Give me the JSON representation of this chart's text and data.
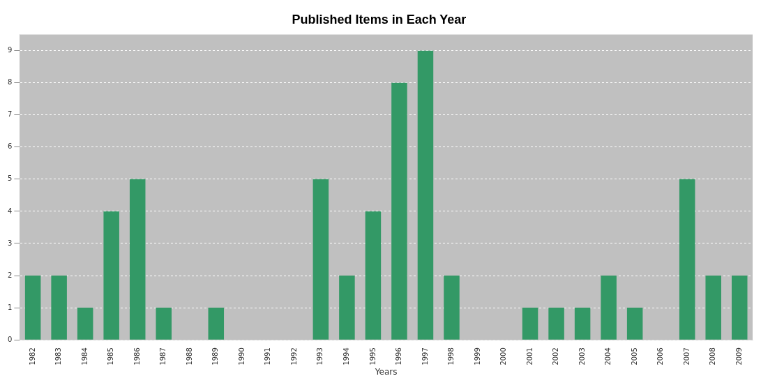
{
  "chart_data": {
    "type": "bar",
    "title": "Published Items in Each Year",
    "xlabel": "Years",
    "categories": [
      "1982",
      "1983",
      "1984",
      "1985",
      "1986",
      "1987",
      "1988",
      "1989",
      "1990",
      "1991",
      "1992",
      "1993",
      "1994",
      "1995",
      "1996",
      "1997",
      "1998",
      "1999",
      "2000",
      "2001",
      "2002",
      "2003",
      "2004",
      "2005",
      "2006",
      "2007",
      "2008",
      "2009"
    ],
    "values": [
      2,
      2,
      1,
      4,
      5,
      1,
      0,
      1,
      0,
      0,
      0,
      5,
      2,
      4,
      8,
      9,
      2,
      0,
      0,
      1,
      1,
      1,
      2,
      1,
      0,
      5,
      2,
      2
    ],
    "color": "#339966",
    "ylim": [
      0,
      9.5
    ],
    "yticks": [
      0,
      1,
      2,
      3,
      4,
      5,
      6,
      7,
      8,
      9
    ],
    "grid": "y",
    "legend": false
  }
}
